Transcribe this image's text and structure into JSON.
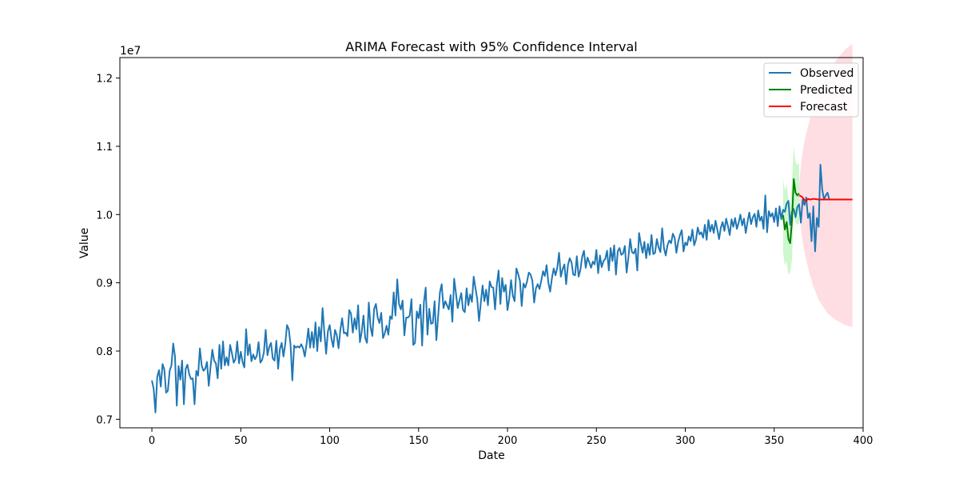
{
  "chart_data": {
    "type": "line",
    "title": "ARIMA Forecast with 95% Confidence Interval",
    "xlabel": "Date",
    "ylabel": "Value",
    "y_offset_label": "1e7",
    "xlim": [
      -18,
      400
    ],
    "ylim": [
      6.875,
      12.3
    ],
    "x_ticks": [
      0,
      50,
      100,
      150,
      200,
      250,
      300,
      350,
      400
    ],
    "y_ticks": [
      0.7,
      0.8,
      0.9,
      1.0,
      1.1,
      1.2
    ],
    "y_tick_labels": [
      "0.7",
      "0.8",
      "0.9",
      "1.0",
      "1.1",
      "1.2"
    ],
    "legend_position": "top-right",
    "colors": {
      "observed": "#1f77b4",
      "predicted": "#008000",
      "forecast": "#ff0000",
      "predicted_ci": "#90ee90",
      "forecast_ci": "#ffb6c1"
    },
    "series": [
      {
        "name": "Observed",
        "key": "observed",
        "x_start": 0,
        "values": [
          7.57,
          7.45,
          7.1,
          7.62,
          7.72,
          7.48,
          7.81,
          7.73,
          7.39,
          7.42,
          7.71,
          7.79,
          8.11,
          7.92,
          7.2,
          7.78,
          7.58,
          7.86,
          7.22,
          7.74,
          7.8,
          7.66,
          7.59,
          7.6,
          7.22,
          7.71,
          7.64,
          8.04,
          7.79,
          7.71,
          7.74,
          7.84,
          7.49,
          7.77,
          8.02,
          7.86,
          7.82,
          7.6,
          8.09,
          7.74,
          8.14,
          7.79,
          7.91,
          7.79,
          8.09,
          7.97,
          7.83,
          7.88,
          8.14,
          7.82,
          7.99,
          7.84,
          7.76,
          8.32,
          7.94,
          8.1,
          7.85,
          7.95,
          7.88,
          7.93,
          8.13,
          7.83,
          7.87,
          7.98,
          8.31,
          7.94,
          8.06,
          8.12,
          7.89,
          7.86,
          8.15,
          7.74,
          8.03,
          8.12,
          7.92,
          8.1,
          8.38,
          8.32,
          8.09,
          7.57,
          8.08,
          8.05,
          8.07,
          8.05,
          8.1,
          8.04,
          7.92,
          8.1,
          8.33,
          8.05,
          8.28,
          8.05,
          8.42,
          8.0,
          8.35,
          8.14,
          8.63,
          8.27,
          7.96,
          8.29,
          8.38,
          8.18,
          8.06,
          8.31,
          8.23,
          8.04,
          8.31,
          8.48,
          8.26,
          8.27,
          8.22,
          8.6,
          8.55,
          8.27,
          8.48,
          8.32,
          8.67,
          8.13,
          8.28,
          8.52,
          8.19,
          8.12,
          8.71,
          8.35,
          8.22,
          8.62,
          8.69,
          8.49,
          8.41,
          8.56,
          8.19,
          8.26,
          8.37,
          8.24,
          8.51,
          8.47,
          8.86,
          8.52,
          9.05,
          8.69,
          8.61,
          8.74,
          8.23,
          8.49,
          8.49,
          8.52,
          8.76,
          8.09,
          8.12,
          8.58,
          8.48,
          8.68,
          8.08,
          8.72,
          8.93,
          8.24,
          8.62,
          8.4,
          8.41,
          8.73,
          8.16,
          8.51,
          8.86,
          8.98,
          8.63,
          8.73,
          8.67,
          8.61,
          8.82,
          8.43,
          9.06,
          8.85,
          8.63,
          8.74,
          8.85,
          8.6,
          8.57,
          8.92,
          8.67,
          8.83,
          8.72,
          9.09,
          8.92,
          8.76,
          8.44,
          8.71,
          8.96,
          8.73,
          8.9,
          8.67,
          9.02,
          8.94,
          8.93,
          8.61,
          8.97,
          9.18,
          8.69,
          9.07,
          8.87,
          8.97,
          8.6,
          8.77,
          9.04,
          8.81,
          8.73,
          9.21,
          9.13,
          9.03,
          8.66,
          8.99,
          8.93,
          9.02,
          9.15,
          9.12,
          9.03,
          8.71,
          8.92,
          8.98,
          8.91,
          9.03,
          9.17,
          9.1,
          9.26,
          9.0,
          8.87,
          9.07,
          9.21,
          9.11,
          9.22,
          9.44,
          9.09,
          9.2,
          9.27,
          8.98,
          9.26,
          9.36,
          9.3,
          9.12,
          9.11,
          9.39,
          9.09,
          9.19,
          9.38,
          9.47,
          9.22,
          9.37,
          9.3,
          9.22,
          9.31,
          9.27,
          9.48,
          9.14,
          9.4,
          9.23,
          9.32,
          9.35,
          9.47,
          9.18,
          9.51,
          9.32,
          9.55,
          9.12,
          9.46,
          9.51,
          9.41,
          9.43,
          9.54,
          9.15,
          9.37,
          9.64,
          9.45,
          9.43,
          9.5,
          9.18,
          9.73,
          9.57,
          9.44,
          9.6,
          9.36,
          9.57,
          9.41,
          9.7,
          9.42,
          9.44,
          9.64,
          9.52,
          9.45,
          9.8,
          9.51,
          9.4,
          9.55,
          9.62,
          9.58,
          9.72,
          9.66,
          9.44,
          9.6,
          9.7,
          9.77,
          9.46,
          9.59,
          9.55,
          9.68,
          9.61,
          9.78,
          9.55,
          9.63,
          9.81,
          9.71,
          9.74,
          9.66,
          9.85,
          9.63,
          9.92,
          9.75,
          9.85,
          9.73,
          9.91,
          9.78,
          9.64,
          9.81,
          9.89,
          9.76,
          9.94,
          9.83,
          9.7,
          9.93,
          9.82,
          9.95,
          9.79,
          9.88,
          10.0,
          9.84,
          9.94,
          9.73,
          9.89,
          10.03,
          9.86,
          9.96,
          10.01,
          9.82,
          10.06,
          9.91,
          9.97,
          9.79,
          10.28,
          9.74,
          10.05,
          9.97,
          10.02,
          9.89,
          10.09,
          9.83,
          10.12,
          9.93,
          10.07,
          10.04,
          10.16,
          10.2,
          9.85,
          10.04,
          10.08,
          9.96,
          10.11,
          10.15,
          9.88,
          10.22,
          10.14,
          10.25,
          9.95,
          10.02,
          9.61,
          10.12,
          9.46,
          9.95,
          9.82,
          10.73,
          10.37,
          10.22,
          10.28,
          10.32,
          10.22
        ]
      },
      {
        "name": "Predicted",
        "key": "predicted",
        "x": [
          355,
          356,
          357,
          358,
          359,
          360,
          361,
          362,
          363,
          364
        ],
        "values": [
          9.99,
          9.78,
          9.89,
          9.64,
          9.58,
          9.91,
          10.52,
          10.32,
          10.28,
          10.31
        ],
        "ci_upper": [
          10.52,
          10.35,
          10.45,
          10.22,
          10.15,
          10.48,
          11.0,
          10.78,
          10.72,
          10.76
        ],
        "ci_lower": [
          9.45,
          9.25,
          9.32,
          9.12,
          9.15,
          9.35,
          10.02,
          9.88,
          9.85,
          9.87
        ]
      },
      {
        "name": "Forecast",
        "key": "forecast",
        "x": [
          364,
          365,
          366,
          367,
          368,
          369,
          370,
          372,
          375,
          380,
          385,
          390,
          394
        ],
        "values": [
          10.28,
          10.27,
          10.25,
          10.21,
          10.2,
          10.23,
          10.22,
          10.23,
          10.22,
          10.22,
          10.22,
          10.22,
          10.22
        ],
        "ci_upper": [
          10.45,
          10.72,
          10.92,
          11.07,
          11.19,
          11.29,
          11.39,
          11.56,
          11.78,
          12.06,
          12.27,
          12.42,
          12.5
        ],
        "ci_lower": [
          10.05,
          9.8,
          9.6,
          9.45,
          9.33,
          9.23,
          9.12,
          8.95,
          8.75,
          8.55,
          8.45,
          8.38,
          8.35
        ]
      }
    ]
  }
}
